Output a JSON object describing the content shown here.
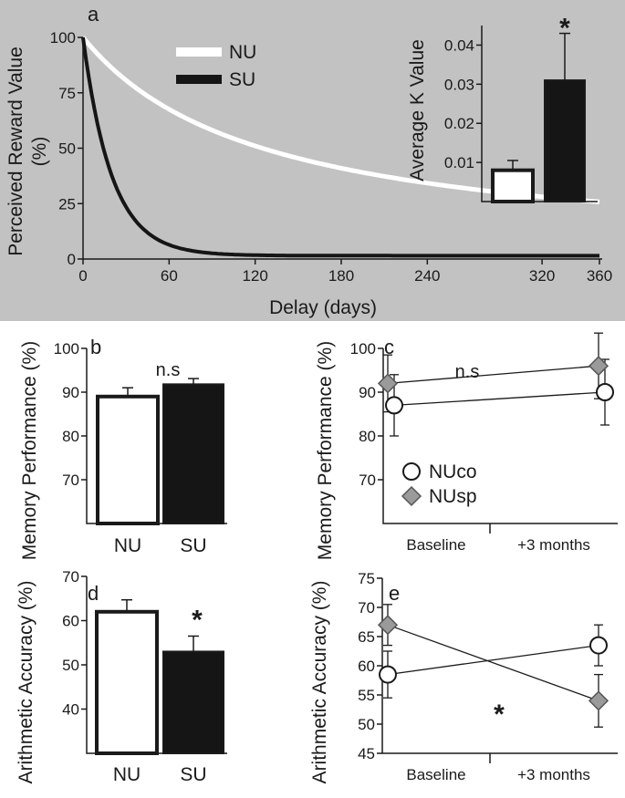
{
  "colors": {
    "panel_a_bg": "#c2c2c2",
    "NU": "#ffffff",
    "SU": "#151515",
    "NUsp": "#9a9a9a"
  },
  "chart_data": [
    {
      "id": "a",
      "type": "line",
      "panel_letter": "a",
      "xlabel": "Delay (days)",
      "ylabel": "Perceived Reward Value (%)",
      "ylabel_line1": "Perceived Reward Value",
      "ylabel_line2": "(%)",
      "xlim": [
        0,
        360
      ],
      "ylim": [
        0,
        100
      ],
      "xticks": [
        0,
        60,
        120,
        180,
        240,
        320,
        360
      ],
      "yticks": [
        0,
        25,
        50,
        75,
        100
      ],
      "legend": {
        "position": "top-center",
        "entries": [
          "NU",
          "SU"
        ]
      },
      "series": [
        {
          "name": "NU",
          "model": "hyperbolic V=100/(1+kD)",
          "k": 0.008
        },
        {
          "name": "SU",
          "model": "exponential",
          "k": 0.05,
          "floor": 1.5
        }
      ]
    },
    {
      "id": "a-inset",
      "type": "bar",
      "ylabel": "Average K Value",
      "ylim": [
        0,
        0.045
      ],
      "yticks": [
        "0.01",
        "0.02",
        "0.03",
        "0.04"
      ],
      "categories": [
        "NU",
        "SU"
      ],
      "values": [
        0.008,
        0.031
      ],
      "errors": [
        0.0025,
        0.012
      ],
      "annotation": "*"
    },
    {
      "id": "b",
      "type": "bar",
      "panel_letter": "b",
      "ylabel": "Memory Performance (%)",
      "ylim": [
        60,
        100
      ],
      "yticks": [
        "70",
        "80",
        "90",
        "100"
      ],
      "categories": [
        "NU",
        "SU"
      ],
      "values": [
        89,
        91.8
      ],
      "errors": [
        2,
        1.3
      ],
      "annotation": "n.s"
    },
    {
      "id": "c",
      "type": "line",
      "panel_letter": "c",
      "ylabel": "Memory Performance (%)",
      "ylim": [
        60,
        100
      ],
      "yticks": [
        "70",
        "80",
        "90",
        "100"
      ],
      "categories": [
        "Baseline",
        "+3 months"
      ],
      "annotation": "n.s",
      "series": [
        {
          "name": "NUco",
          "values": [
            87,
            90
          ],
          "errors": [
            7,
            7.5
          ]
        },
        {
          "name": "NUsp",
          "values": [
            92,
            96
          ],
          "errors": [
            6.5,
            7.5
          ]
        }
      ]
    },
    {
      "id": "d",
      "type": "bar",
      "panel_letter": "d",
      "ylabel": "Arithmetic Accuracy (%)",
      "ylim": [
        30,
        70
      ],
      "yticks": [
        "40",
        "50",
        "60",
        "70"
      ],
      "categories": [
        "NU",
        "SU"
      ],
      "values": [
        62,
        53
      ],
      "errors": [
        2.7,
        3.5
      ],
      "annotation": "*"
    },
    {
      "id": "e",
      "type": "line",
      "panel_letter": "e",
      "ylabel": "Arithmetic Accuracy (%)",
      "ylim": [
        45,
        75
      ],
      "yticks": [
        "45",
        "50",
        "55",
        "60",
        "65",
        "70",
        "75"
      ],
      "categories": [
        "Baseline",
        "+3 months"
      ],
      "annotation": "*",
      "series": [
        {
          "name": "NUco",
          "values": [
            58.5,
            63.5
          ],
          "errors": [
            4,
            3.5
          ]
        },
        {
          "name": "NUsp",
          "values": [
            67,
            54
          ],
          "errors": [
            3.5,
            4.5
          ]
        }
      ]
    }
  ]
}
